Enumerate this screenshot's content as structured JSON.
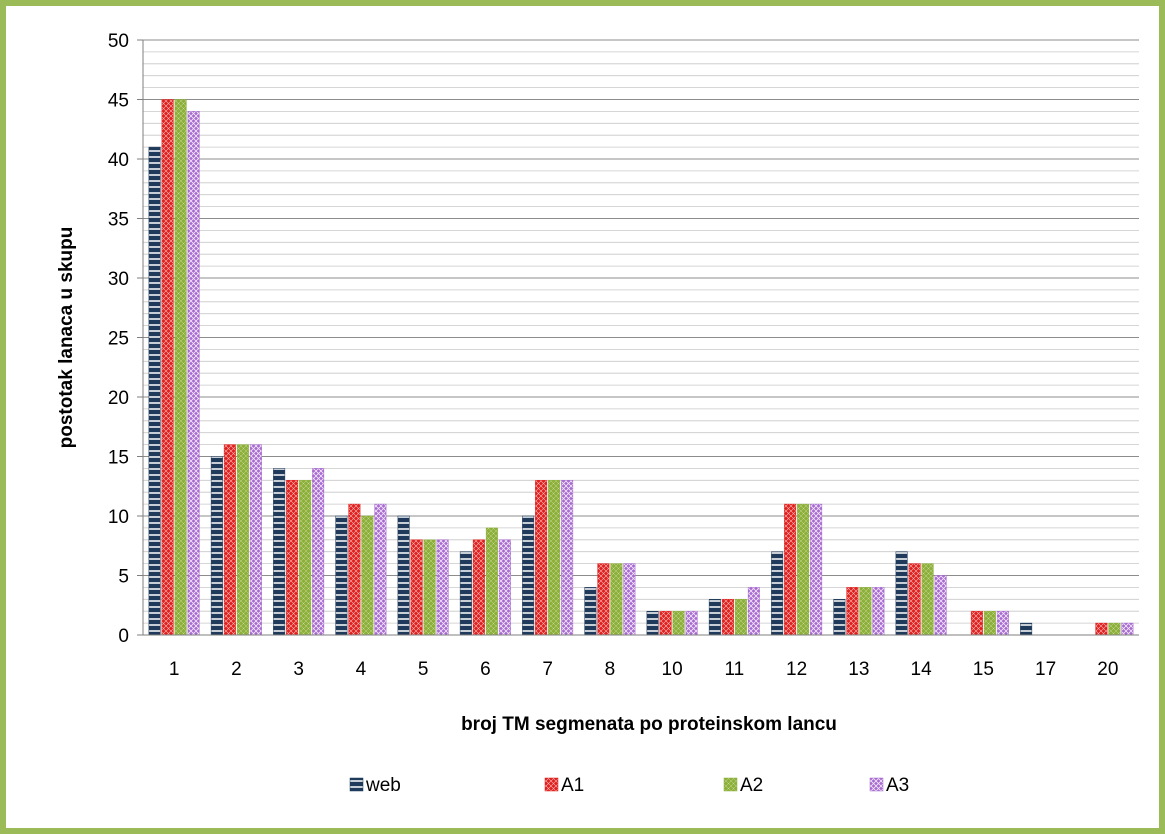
{
  "chart_data": {
    "type": "bar",
    "title": "",
    "xlabel": "broj TM segmenata po proteinskom lancu",
    "ylabel": "postotak lanaca u skupu",
    "ylim": [
      0,
      50
    ],
    "yticks": [
      "0",
      "5",
      "10",
      "15",
      "20",
      "25",
      "30",
      "35",
      "40",
      "45",
      "50"
    ],
    "categories": [
      "1",
      "2",
      "3",
      "4",
      "5",
      "6",
      "7",
      "8",
      "10",
      "11",
      "12",
      "13",
      "14",
      "15",
      "17",
      "20"
    ],
    "grid": true,
    "legend_position": "bottom",
    "series": [
      {
        "name": "web",
        "color": "#1f3a5a",
        "values": [
          41,
          15,
          14,
          10,
          10,
          7,
          10,
          4,
          2,
          3,
          7,
          3,
          7,
          0,
          1,
          0
        ]
      },
      {
        "name": "A1",
        "color": "#e0201e",
        "values": [
          45,
          16,
          13,
          11,
          8,
          8,
          13,
          6,
          2,
          3,
          11,
          4,
          6,
          2,
          0,
          1
        ]
      },
      {
        "name": "A2",
        "color": "#8db03a",
        "values": [
          45,
          16,
          13,
          10,
          8,
          9,
          13,
          6,
          2,
          3,
          11,
          4,
          6,
          2,
          0,
          1
        ]
      },
      {
        "name": "A3",
        "color": "#a86ad0",
        "values": [
          44,
          16,
          14,
          11,
          8,
          8,
          13,
          6,
          2,
          4,
          11,
          4,
          5,
          2,
          0,
          1
        ]
      }
    ]
  }
}
